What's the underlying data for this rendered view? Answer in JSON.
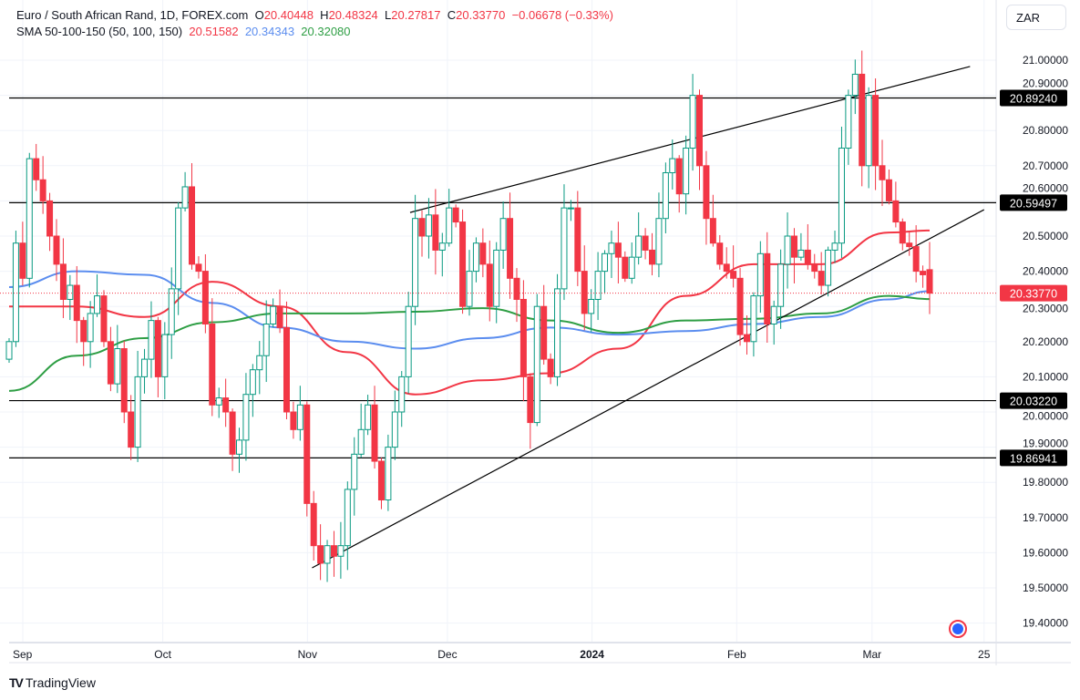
{
  "header": {
    "symbol": "Euro / South African Rand, 1D, FOREX.com",
    "o_label": "O",
    "o": "20.40448",
    "h_label": "H",
    "h": "20.48324",
    "l_label": "L",
    "l": "20.27817",
    "c_label": "C",
    "c": "20.33770",
    "change": "−0.06678 (−0.33%)",
    "sma_label": "SMA 50-100-150 (50, 100, 150)",
    "sma50": "20.51582",
    "sma100": "20.34343",
    "sma150": "20.32080"
  },
  "currency_button": "ZAR",
  "brand": "TradingView",
  "colors": {
    "up": "#089981",
    "down": "#f23645",
    "sma50": "#f23645",
    "sma100": "#5b8def",
    "sma150": "#2e9e44"
  },
  "chart_data": {
    "type": "candlestick",
    "title": "Euro / South African Rand, 1D, FOREX.com",
    "ylim": [
      19.35,
      21.1
    ],
    "y_ticks": [
      "21.00000",
      "20.90000",
      "20.80000",
      "20.70000",
      "20.60000",
      "20.50000",
      "20.40000",
      "20.30000",
      "20.20000",
      "20.10000",
      "20.00000",
      "19.90000",
      "19.80000",
      "19.70000",
      "19.60000",
      "19.50000",
      "19.40000"
    ],
    "x_ticks": [
      {
        "label": "Sep",
        "date": "2023-09-01"
      },
      {
        "label": "Oct",
        "date": "2023-10-01"
      },
      {
        "label": "Nov",
        "date": "2023-11-01"
      },
      {
        "label": "Dec",
        "date": "2023-12-01"
      },
      {
        "label": "2024",
        "date": "2024-01-01",
        "bold": true
      },
      {
        "label": "Feb",
        "date": "2024-02-01"
      },
      {
        "label": "Mar",
        "date": "2024-03-01"
      },
      {
        "label": "25",
        "date": "2024-03-25"
      }
    ],
    "closes": [
      20.2,
      20.48,
      20.38,
      20.72,
      20.66,
      20.6,
      20.5,
      20.42,
      20.32,
      20.36,
      20.26,
      20.2,
      20.28,
      20.33,
      20.2,
      20.08,
      20.18,
      20.0,
      19.9,
      20.1,
      20.15,
      20.26,
      20.1,
      20.22,
      20.35,
      20.58,
      20.64,
      20.42,
      20.4,
      20.25,
      20.02,
      20.04,
      20.0,
      19.88,
      19.92,
      20.05,
      20.12,
      20.16,
      20.25,
      20.3,
      20.24,
      20.0,
      19.95,
      20.02,
      19.74,
      19.62,
      19.57,
      19.62,
      19.59,
      19.62,
      19.78,
      19.88,
      19.95,
      20.02,
      19.86,
      19.75,
      19.9,
      20.0,
      20.1,
      20.3,
      20.55,
      20.5,
      20.56,
      20.46,
      20.48,
      20.58,
      20.54,
      20.3,
      20.4,
      20.48,
      20.42,
      20.3,
      20.46,
      20.55,
      20.38,
      20.32,
      20.1,
      19.97,
      20.3,
      20.15,
      20.1,
      20.35,
      20.58,
      20.58,
      20.4,
      20.28,
      20.32,
      20.4,
      20.45,
      20.48,
      20.44,
      20.38,
      20.44,
      20.5,
      20.46,
      20.42,
      20.55,
      20.68,
      20.72,
      20.62,
      20.75,
      20.9,
      20.7,
      20.55,
      20.48,
      20.42,
      20.4,
      20.38,
      20.22,
      20.2,
      20.33,
      20.45,
      20.25,
      20.3,
      20.42,
      20.5,
      20.44,
      20.46,
      20.42,
      20.4,
      20.36,
      20.46,
      20.48,
      20.75,
      20.9,
      20.96,
      20.7,
      20.9,
      20.7,
      20.66,
      20.6,
      20.54,
      20.48,
      20.47,
      20.4,
      20.39,
      20.40448
    ],
    "last_bar": {
      "open": 20.40448,
      "high": 20.48324,
      "low": 20.27817,
      "close": 20.3377
    },
    "series": [
      {
        "name": "SMA 50",
        "values": [
          20.3,
          20.3,
          20.27,
          20.37,
          20.3,
          20.17,
          20.05,
          20.09,
          20.11,
          20.18,
          20.33,
          20.42,
          20.42,
          20.51,
          20.51582
        ]
      },
      {
        "name": "SMA 100",
        "values": [
          20.355,
          20.4,
          20.39,
          20.31,
          20.24,
          20.2,
          20.18,
          20.21,
          20.24,
          20.22,
          20.23,
          20.25,
          20.27,
          20.32,
          20.34343
        ]
      },
      {
        "name": "SMA 150",
        "values": [
          20.06,
          20.16,
          20.21,
          20.255,
          20.28,
          20.28,
          20.285,
          20.295,
          20.26,
          20.225,
          20.26,
          20.265,
          20.28,
          20.33,
          20.3208
        ]
      }
    ],
    "horizontal_levels": [
      "20.89240",
      "20.59497",
      "20.03220",
      "19.86941"
    ],
    "current_price": "20.33770",
    "trendlines": [
      {
        "from": {
          "date": "2023-11-02",
          "price": 19.557
        },
        "to": {
          "date": "2024-03-25",
          "price": 20.575
        }
      },
      {
        "from": {
          "date": "2023-11-23",
          "price": 20.567
        },
        "to": {
          "date": "2024-03-22",
          "price": 20.982
        }
      }
    ],
    "grid": true
  }
}
